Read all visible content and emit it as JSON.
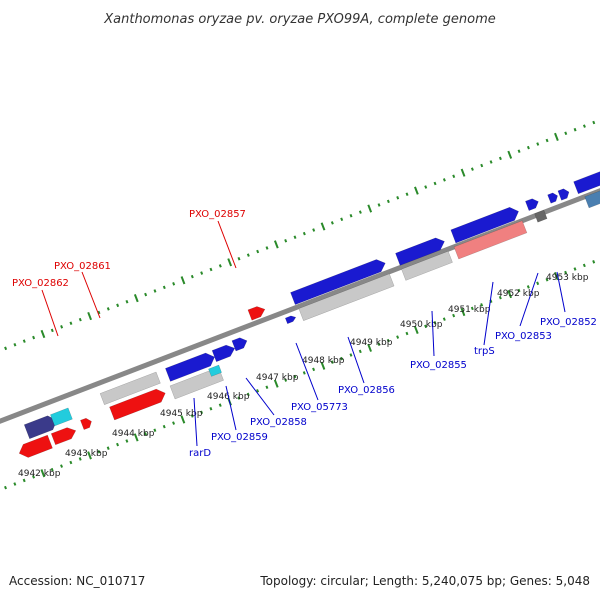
{
  "title": "Xanthomonas oryzae pv. oryzae PXO99A, complete genome",
  "footer": {
    "accession": "Accession: NC_010717",
    "topology": "Topology: circular; Length: 5,240,075 bp; Genes: 5,048"
  },
  "scale_labels": [
    "4942 kbp",
    "4943 kbp",
    "4944 kbp",
    "4945 kbp",
    "4946 kbp",
    "4947 kbp",
    "4948 kbp",
    "4949 kbp",
    "4950 kbp",
    "4951 kbp",
    "4952 kbp",
    "4953 kbp"
  ],
  "gene_labels": {
    "top": [
      "PXO_02862",
      "PXO_02861",
      "PXO_02857"
    ],
    "bottom": [
      "rarD",
      "PXO_02859",
      "PXO_02858",
      "PXO_05773",
      "PXO_02856",
      "PXO_02855",
      "trpS",
      "PXO_02853",
      "PXO_02852"
    ]
  },
  "colors": {
    "forward_gene": "#ee1111",
    "reverse_gene": "#1a1ad0",
    "pseudo_gene": "#c8c8c8",
    "highlight": "#22ccdd",
    "rna": "#f08080",
    "backbone": "#888888",
    "tick": "#2a8a2a"
  }
}
